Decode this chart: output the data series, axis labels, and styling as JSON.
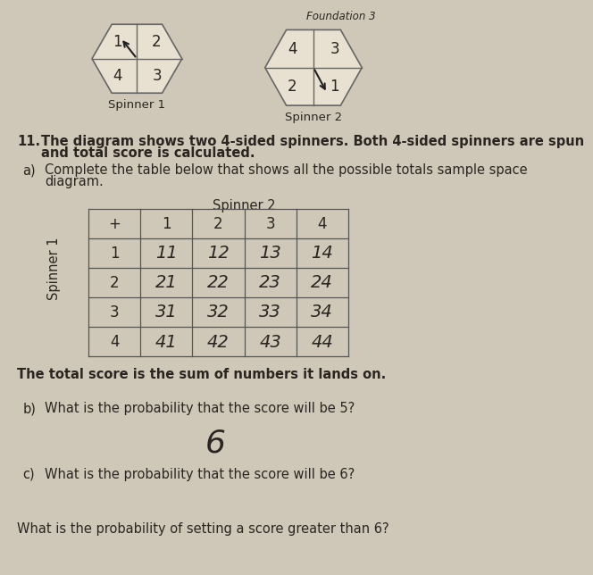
{
  "page_bg": "#cfc8b8",
  "spinner_face": "#e8e0d0",
  "spinner_edge": "#666666",
  "title_top": "Foundation 3",
  "spinner1_label": "Spinner 1",
  "spinner2_label": "Spinner 2",
  "spinner1_numbers": [
    "1",
    "2",
    "4",
    "3"
  ],
  "spinner2_numbers": [
    "4",
    "3",
    "2",
    "1"
  ],
  "question_number": "11.",
  "q_text1": "The diagram shows two 4-sided spinners. Both 4-sided spinners are spun",
  "q_text2": "and total score is calculated.",
  "sub_a": "a)    Complete the table below that shows all the possible totals sample space",
  "sub_a2": "       diagram.",
  "spinner2_header": "Spinner 2",
  "spinner1_side_label": "Spinner 1",
  "table_plus": "+",
  "col_headers": [
    "1",
    "2",
    "3",
    "4"
  ],
  "row_headers": [
    "1",
    "2",
    "3",
    "4"
  ],
  "table_values": [
    [
      "11",
      "12",
      "13",
      "14"
    ],
    [
      "21",
      "22",
      "23",
      "24"
    ],
    [
      "31",
      "32",
      "33",
      "34"
    ],
    [
      "41",
      "42",
      "43",
      "44"
    ]
  ],
  "note_bold": "The total score is the sum of numbers it lands on.",
  "sub_b_text": "What is the probability that the score will be 5?",
  "answer_b": "6",
  "sub_c_text": "What is the probability that the score will be 6?",
  "sub_d_text": "What is the probability of setting a score greater than 6?",
  "text_color": "#2a2520",
  "handwritten_color": "#2a2520",
  "table_line_color": "#555555"
}
